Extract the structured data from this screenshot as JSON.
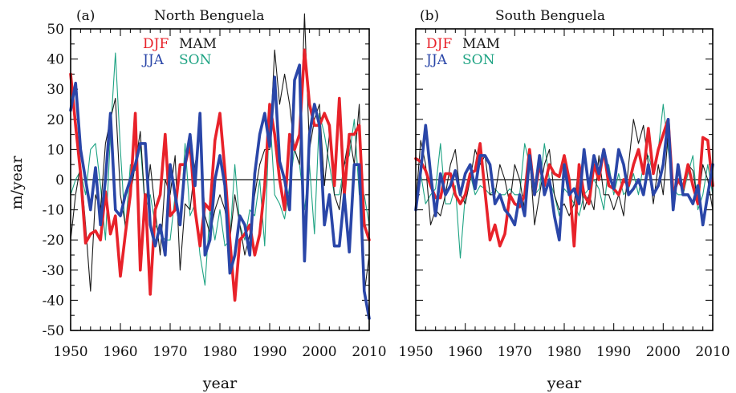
{
  "chart_data": [
    {
      "type": "line",
      "panel_label": "(a)",
      "title": "North Benguela",
      "xlabel": "year",
      "ylabel": "m/year",
      "xlim": [
        1950,
        2010
      ],
      "ylim": [
        -50,
        50
      ],
      "xticks": [
        1950,
        1960,
        1970,
        1980,
        1990,
        2000,
        2010
      ],
      "yticks": [
        -50,
        -40,
        -30,
        -20,
        -10,
        0,
        10,
        20,
        30,
        40,
        50
      ],
      "zero_line": true,
      "grid": false,
      "legend_position": "top-left",
      "x": [
        1950,
        1951,
        1952,
        1953,
        1954,
        1955,
        1956,
        1957,
        1958,
        1959,
        1960,
        1961,
        1962,
        1963,
        1964,
        1965,
        1966,
        1967,
        1968,
        1969,
        1970,
        1971,
        1972,
        1973,
        1974,
        1975,
        1976,
        1977,
        1978,
        1979,
        1980,
        1981,
        1982,
        1983,
        1984,
        1985,
        1986,
        1987,
        1988,
        1989,
        1990,
        1991,
        1992,
        1993,
        1994,
        1995,
        1996,
        1997,
        1998,
        1999,
        2000,
        2001,
        2002,
        2003,
        2004,
        2005,
        2006,
        2007,
        2008,
        2009,
        2010
      ],
      "series": [
        {
          "name": "DJF",
          "color": "#e8222a",
          "values": [
            35,
            18,
            2,
            -21,
            -18,
            -17,
            -20,
            -4,
            -18,
            -12,
            -32,
            -18,
            -5,
            22,
            -30,
            -5,
            -38,
            -10,
            -5,
            15,
            -12,
            -10,
            5,
            5,
            12,
            -10,
            -22,
            -8,
            -10,
            13,
            22,
            3,
            -20,
            -40,
            -20,
            -18,
            -15,
            -25,
            -18,
            -2,
            25,
            15,
            0,
            -10,
            15,
            10,
            15,
            43,
            25,
            18,
            18,
            22,
            18,
            -2,
            27,
            -5,
            15,
            15,
            18,
            -15,
            -20
          ]
        },
        {
          "name": "MAM",
          "color": "#1a1a1a",
          "values": [
            -20,
            -5,
            5,
            -15,
            -37,
            -5,
            -10,
            12,
            20,
            27,
            -5,
            -15,
            -5,
            5,
            16,
            -10,
            5,
            -10,
            -25,
            0,
            -5,
            8,
            -30,
            -8,
            -10,
            5,
            15,
            -12,
            -18,
            -10,
            -5,
            -10,
            -20,
            -5,
            -15,
            -25,
            -18,
            -5,
            5,
            10,
            10,
            43,
            25,
            35,
            25,
            10,
            5,
            55,
            10,
            20,
            25,
            -2,
            15,
            -5,
            -10,
            5,
            15,
            5,
            25,
            -38,
            -25
          ]
        },
        {
          "name": "JJA",
          "color": "#2a46a8",
          "values": [
            23,
            32,
            10,
            0,
            -10,
            4,
            -15,
            0,
            22,
            -10,
            -12,
            -5,
            0,
            5,
            12,
            12,
            -15,
            -22,
            -15,
            -25,
            5,
            -5,
            -15,
            5,
            15,
            -2,
            22,
            -25,
            -20,
            0,
            8,
            -2,
            -31,
            -25,
            -12,
            -15,
            -25,
            2,
            15,
            22,
            11,
            34,
            6,
            0,
            -10,
            33,
            38,
            -27,
            15,
            25,
            18,
            -15,
            -5,
            -22,
            -22,
            -5,
            -24,
            5,
            5,
            -37,
            -46
          ]
        },
        {
          "name": "SON",
          "color": "#1ea383",
          "values": [
            -5,
            0,
            3,
            -5,
            10,
            12,
            -2,
            -20,
            15,
            42,
            10,
            -17,
            5,
            3,
            12,
            -10,
            -5,
            -15,
            -18,
            -20,
            -20,
            -5,
            -15,
            12,
            -12,
            -8,
            -25,
            -35,
            -10,
            -20,
            -10,
            -22,
            -20,
            5,
            -15,
            -20,
            -10,
            -12,
            0,
            -22,
            23,
            -5,
            -8,
            -13,
            -2,
            10,
            5,
            -10,
            5,
            -18,
            22,
            15,
            5,
            -5,
            -5,
            5,
            8,
            20,
            -5,
            -5,
            -15
          ]
        }
      ]
    },
    {
      "type": "line",
      "panel_label": "(b)",
      "title": "South Benguela",
      "xlabel": "year",
      "xlim": [
        1950,
        2010
      ],
      "ylim": [
        -50,
        50
      ],
      "xticks": [
        1950,
        1960,
        1970,
        1980,
        1990,
        2000,
        2010
      ],
      "zero_line": true,
      "grid": false,
      "legend_position": "top-left",
      "x": [
        1950,
        1951,
        1952,
        1953,
        1954,
        1955,
        1956,
        1957,
        1958,
        1959,
        1960,
        1961,
        1962,
        1963,
        1964,
        1965,
        1966,
        1967,
        1968,
        1969,
        1970,
        1971,
        1972,
        1973,
        1974,
        1975,
        1976,
        1977,
        1978,
        1979,
        1980,
        1981,
        1982,
        1983,
        1984,
        1985,
        1986,
        1987,
        1988,
        1989,
        1990,
        1991,
        1992,
        1993,
        1994,
        1995,
        1996,
        1997,
        1998,
        1999,
        2000,
        2001,
        2002,
        2003,
        2004,
        2005,
        2006,
        2007,
        2008,
        2009,
        2010
      ],
      "series": [
        {
          "name": "DJF",
          "color": "#e8222a",
          "values": [
            7,
            6,
            3,
            -2,
            -6,
            -6,
            2,
            2,
            -5,
            -8,
            -5,
            2,
            3,
            12,
            -4,
            -20,
            -15,
            -22,
            -18,
            -5,
            -8,
            -9,
            -5,
            10,
            -5,
            5,
            -2,
            5,
            2,
            1,
            8,
            0,
            -22,
            5,
            -5,
            -8,
            5,
            0,
            10,
            -2,
            -3,
            -5,
            0,
            -2,
            5,
            10,
            2,
            17,
            2,
            10,
            15,
            20,
            -5,
            0,
            -3,
            5,
            -2,
            -8,
            14,
            13,
            -2
          ]
        },
        {
          "name": "MAM",
          "color": "#1a1a1a",
          "values": [
            -8,
            13,
            5,
            -15,
            -10,
            -12,
            -5,
            5,
            10,
            -5,
            -8,
            0,
            10,
            5,
            8,
            -5,
            -5,
            5,
            0,
            -8,
            5,
            0,
            -10,
            8,
            -15,
            -5,
            5,
            10,
            -5,
            -10,
            -8,
            -12,
            -8,
            5,
            -10,
            -5,
            -10,
            8,
            -5,
            -5,
            -10,
            -5,
            -12,
            5,
            20,
            12,
            18,
            5,
            -8,
            5,
            -5,
            15,
            -8,
            5,
            -5,
            5,
            3,
            -8,
            5,
            0,
            -10
          ]
        },
        {
          "name": "JJA",
          "color": "#2a46a8",
          "values": [
            -10,
            3,
            18,
            2,
            -12,
            2,
            -5,
            -2,
            3,
            -5,
            2,
            5,
            -3,
            8,
            8,
            5,
            -8,
            -5,
            -10,
            -12,
            -15,
            -5,
            -12,
            8,
            -5,
            8,
            -5,
            0,
            -12,
            -20,
            5,
            -5,
            -3,
            -8,
            10,
            -3,
            8,
            2,
            10,
            2,
            -3,
            10,
            5,
            -5,
            -3,
            0,
            -5,
            5,
            -5,
            -2,
            5,
            20,
            -10,
            5,
            -5,
            -5,
            -8,
            -2,
            -15,
            -5,
            5
          ]
        },
        {
          "name": "SON",
          "color": "#1ea383",
          "values": [
            -5,
            2,
            -8,
            -5,
            -3,
            12,
            -8,
            -8,
            -2,
            -26,
            -5,
            2,
            -5,
            -2,
            -3,
            -5,
            -3,
            -5,
            -5,
            -3,
            -5,
            -5,
            12,
            5,
            -5,
            -3,
            12,
            0,
            -5,
            -12,
            -3,
            -5,
            -8,
            -12,
            -5,
            -3,
            0,
            -3,
            -10,
            5,
            -5,
            2,
            -5,
            -3,
            2,
            -5,
            5,
            8,
            2,
            10,
            25,
            10,
            -3,
            -5,
            -5,
            2,
            8,
            -10,
            -5,
            5,
            -5
          ]
        }
      ]
    }
  ]
}
